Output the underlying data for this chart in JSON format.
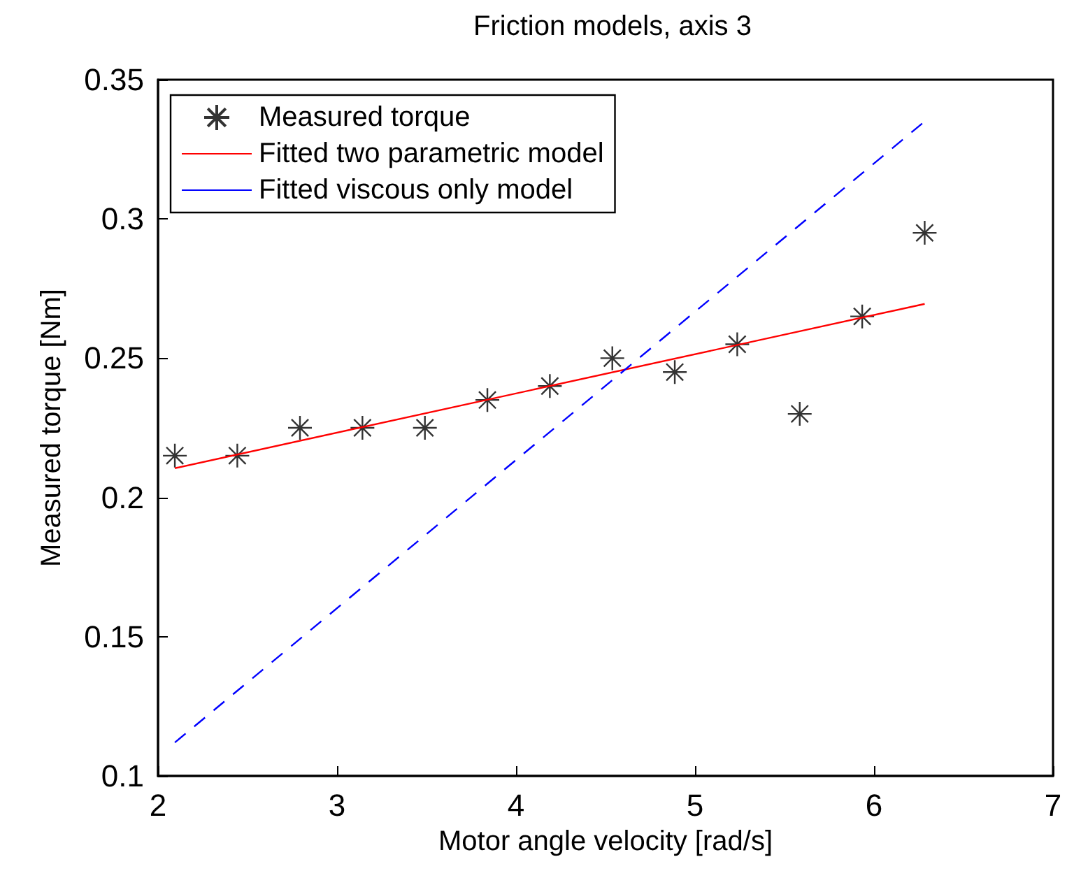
{
  "chart_data": {
    "type": "scatter",
    "title": "Friction models, axis 3",
    "xlabel": "Motor angle velocity [rad/s]",
    "ylabel": "Measured torque [Nm]",
    "xlim": [
      2,
      7
    ],
    "xticks": [
      2,
      3,
      4,
      5,
      6,
      7
    ],
    "ylim": [
      0.1,
      0.35
    ],
    "yticks": [
      0.1,
      0.15,
      0.2,
      0.25,
      0.3,
      0.35
    ],
    "grid": false,
    "legend": "top left",
    "series": [
      {
        "name": "Measured torque",
        "marker": "cross",
        "color": "#000000",
        "x": [
          2.094,
          2.443,
          2.793,
          3.142,
          3.491,
          3.84,
          4.189,
          4.538,
          4.887,
          5.236,
          5.585,
          5.934,
          6.283
        ],
        "values": [
          0.215,
          0.215,
          0.225,
          0.225,
          0.225,
          0.235,
          0.24,
          0.25,
          0.245,
          0.255,
          0.23,
          0.265,
          0.295
        ]
      },
      {
        "name": "Fitted two parametric model",
        "type": "line",
        "marker": "none",
        "line_style": "solid",
        "color": "#ff0000",
        "x": [
          2.094,
          6.283
        ],
        "values": [
          0.2105,
          0.2695
        ]
      },
      {
        "name": "Fitted viscous only model",
        "type": "line",
        "marker": "none",
        "line_style": "dashed",
        "color": "#0000ff",
        "x": [
          2.094,
          6.283
        ],
        "values": [
          0.112,
          0.335
        ]
      }
    ]
  }
}
